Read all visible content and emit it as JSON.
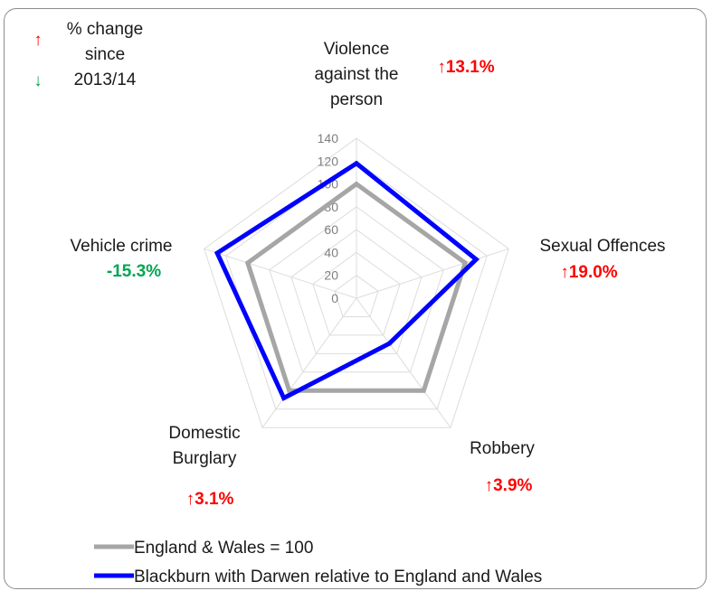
{
  "chart_data": {
    "type": "radar",
    "axes": [
      {
        "label": [
          "Violence",
          "against the",
          "person"
        ],
        "change": "↑13.1%",
        "change_dir": "up"
      },
      {
        "label": [
          "Sexual Offences"
        ],
        "change": "↑19.0%",
        "change_dir": "up"
      },
      {
        "label": [
          "Robbery"
        ],
        "change": "↑3.9%",
        "change_dir": "up"
      },
      {
        "label": [
          "Domestic",
          "Burglary"
        ],
        "change": "↑3.1%",
        "change_dir": "up"
      },
      {
        "label": [
          "Vehicle crime"
        ],
        "change": "-15.3%",
        "change_dir": "down"
      }
    ],
    "ticks": [
      0,
      20,
      40,
      60,
      80,
      100,
      120,
      140
    ],
    "rmax": 140,
    "series": [
      {
        "name": "England & Wales = 100",
        "values": [
          100,
          100,
          100,
          100,
          100
        ],
        "color": "#a6a6a6"
      },
      {
        "name": "Blackburn with Darwen relative to England and Wales",
        "values": [
          118,
          110,
          49,
          108,
          128
        ],
        "color": "#0000ff"
      }
    ],
    "change_key": {
      "lines": [
        "% change",
        "since",
        "2013/14"
      ],
      "up_arrow": "↑",
      "down_arrow": "↓",
      "up_color": "#ff0000",
      "down_color": "#00a651"
    },
    "legend_position": "bottom-left"
  }
}
